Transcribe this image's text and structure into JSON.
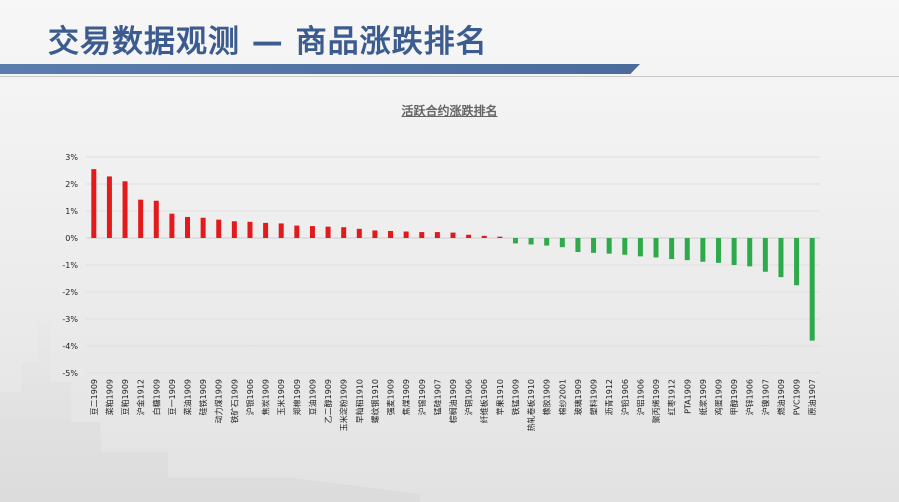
{
  "slide": {
    "title": "交易数据观测 — 商品涨跌排名"
  },
  "chart_data": {
    "type": "bar",
    "title": "活跃合约涨跌排名",
    "xlabel": "",
    "ylabel": "",
    "ylim": [
      -5,
      3
    ],
    "yticks": [
      "3%",
      "2%",
      "1%",
      "0%",
      "-1%",
      "-2%",
      "-3%",
      "-4%",
      "-5%"
    ],
    "grid": true,
    "legend": "none",
    "positive_color": "#e31a1c",
    "negative_color": "#2eaa4a",
    "categories": [
      "豆二1909",
      "菜粕1909",
      "豆粕1909",
      "沪金1912",
      "白糖1909",
      "豆一1909",
      "菜油1909",
      "硅铁1909",
      "动力煤1909",
      "铁矿石1909",
      "沪银1906",
      "焦炭1909",
      "玉米1909",
      "郑棉1909",
      "豆油1909",
      "乙二醇1909",
      "玉米淀粉1909",
      "早籼稻1910",
      "螺纹钢1910",
      "强麦1909",
      "焦煤1909",
      "沪锡1909",
      "锰硅1907",
      "棕榈油1909",
      "沪铜1906",
      "纤维板1906",
      "苹果1910",
      "铁锰1909",
      "热轧卷板1910",
      "橡胶1909",
      "棉纱2001",
      "玻璃1909",
      "塑料1909",
      "沥青1912",
      "沪铅1906",
      "沪铝1906",
      "聚丙烯1909",
      "红枣1912",
      "PTA1909",
      "纸浆1909",
      "鸡蛋1909",
      "甲醇1909",
      "沪锌1906",
      "沪镍1907",
      "燃油1909",
      "PVC1909",
      "原油1907"
    ],
    "values": [
      2.55,
      2.28,
      2.1,
      1.42,
      1.38,
      0.9,
      0.78,
      0.75,
      0.68,
      0.62,
      0.6,
      0.56,
      0.54,
      0.46,
      0.44,
      0.42,
      0.4,
      0.34,
      0.28,
      0.26,
      0.24,
      0.22,
      0.22,
      0.2,
      0.12,
      0.08,
      0.05,
      -0.2,
      -0.24,
      -0.28,
      -0.34,
      -0.52,
      -0.55,
      -0.58,
      -0.62,
      -0.68,
      -0.72,
      -0.78,
      -0.82,
      -0.88,
      -0.92,
      -1.0,
      -1.05,
      -1.25,
      -1.45,
      -1.75,
      -3.8
    ]
  }
}
